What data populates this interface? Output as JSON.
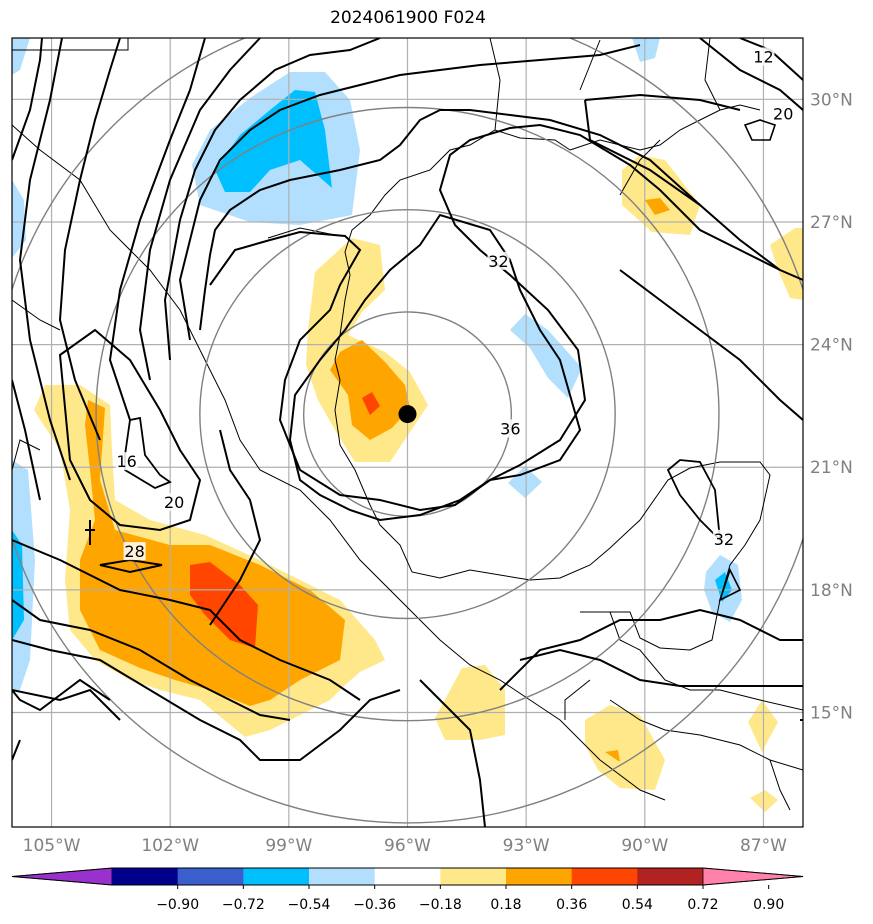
{
  "title": "2024061900 F024",
  "map": {
    "lon_range": [
      -106,
      -86
    ],
    "lat_range": [
      12.2,
      31.5
    ],
    "lon_ticks": [
      {
        "value": -105,
        "label": "105°W"
      },
      {
        "value": -102,
        "label": "102°W"
      },
      {
        "value": -99,
        "label": "99°W"
      },
      {
        "value": -96,
        "label": "96°W"
      },
      {
        "value": -93,
        "label": "93°W"
      },
      {
        "value": -90,
        "label": "90°W"
      },
      {
        "value": -87,
        "label": "87°W"
      }
    ],
    "lat_ticks": [
      {
        "value": 15,
        "label": "15°N"
      },
      {
        "value": 18,
        "label": "18°N"
      },
      {
        "value": 21,
        "label": "21°N"
      },
      {
        "value": 24,
        "label": "24°N"
      },
      {
        "value": 27,
        "label": "27°N"
      },
      {
        "value": 30,
        "label": "30°N"
      }
    ],
    "center_point": {
      "lon": -96.0,
      "lat": 22.3
    },
    "range_rings_deg": [
      2.5,
      5,
      7.5,
      10
    ],
    "contour_labels": [
      {
        "text": "12",
        "lon": -87.0,
        "lat": 31.0
      },
      {
        "text": "20",
        "lon": -86.5,
        "lat": 29.6
      },
      {
        "text": "32",
        "lon": -93.7,
        "lat": 26.0
      },
      {
        "text": "36",
        "lon": -93.4,
        "lat": 21.9
      },
      {
        "text": "16",
        "lon": -103.1,
        "lat": 21.1
      },
      {
        "text": "20",
        "lon": -101.9,
        "lat": 20.1
      },
      {
        "text": "28",
        "lon": -102.9,
        "lat": 18.9
      },
      {
        "text": "32",
        "lon": -88.0,
        "lat": 19.2
      }
    ]
  },
  "colorbar": {
    "labels": [
      "−0.90",
      "−0.72",
      "−0.54",
      "−0.36",
      "−0.18",
      "0.18",
      "0.36",
      "0.54",
      "0.72",
      "0.90"
    ],
    "colors": [
      "#9932cc",
      "#00008b",
      "#3a5fcd",
      "#00bfff",
      "#b2dffe",
      "#ffffff",
      "#ffe88a",
      "#ffa500",
      "#ff4500",
      "#b22222",
      "#ff82ab"
    ]
  },
  "colors": {
    "light_blue": "#b2dffe",
    "blue": "#00bfff",
    "light_yellow": "#ffe88a",
    "orange": "#ffa500",
    "red_orange": "#ff4500",
    "grid": "#b0b0b0",
    "ring": "#808080"
  }
}
